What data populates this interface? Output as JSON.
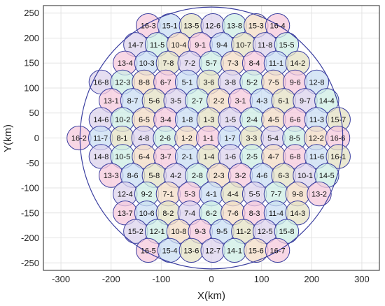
{
  "chart_data": {
    "type": "scatter",
    "xlabel": "X(km)",
    "ylabel": "Y(km)",
    "xlim": [
      -335,
      335
    ],
    "ylim": [
      -265,
      265
    ],
    "xticks": [
      -300,
      -200,
      -100,
      0,
      100,
      200,
      300
    ],
    "yticks": [
      -250,
      -200,
      -150,
      -100,
      -50,
      0,
      50,
      100,
      150,
      200,
      250
    ],
    "grid": true,
    "coverage_radius_km": 262,
    "cell_radius_km": 24,
    "cell_colors": [
      "#f6c9dc",
      "#c9def3",
      "#e4e2c4",
      "#dcd3ec",
      "#cdeee4",
      "#f3dcc5"
    ],
    "outline_color": "#3b3fa0",
    "rows": [
      {
        "y": 225,
        "x_start": -126,
        "labels": [
          "16-3",
          "15-1",
          "13-5",
          "12-6",
          "13-8",
          "15-3",
          "16-4"
        ]
      },
      {
        "y": 187,
        "x_start": -151,
        "labels": [
          "14-7",
          "11-5",
          "10-4",
          "9-1",
          "9-4",
          "10-7",
          "11-8",
          "15-5"
        ]
      },
      {
        "y": 150,
        "x_start": -172,
        "labels": [
          "13-4",
          "10-3",
          "7-8",
          "7-2",
          "5-7",
          "7-3",
          "8-4",
          "11-1",
          "14-2"
        ]
      },
      {
        "y": 112,
        "x_start": -220,
        "labels": [
          "16-8",
          "12-3",
          "8-8",
          "6-7",
          "5-1",
          "3-6",
          "3-8",
          "5-2",
          "7-5",
          "9-6",
          "12-8"
        ]
      },
      {
        "y": 75,
        "x_start": -200,
        "labels": [
          "13-1",
          "8-7",
          "5-6",
          "3-5",
          "2-7",
          "2-2",
          "3-1",
          "4-3",
          "6-1",
          "9-7",
          "14-4"
        ]
      },
      {
        "y": 37,
        "x_start": -220,
        "labels": [
          "14-6",
          "10-2",
          "6-5",
          "3-4",
          "1-8",
          "1-3",
          "1-5",
          "2-4",
          "4-5",
          "6-6",
          "11-3",
          "15-7"
        ]
      },
      {
        "y": 0,
        "x_start": -264,
        "labels": [
          "16-2",
          "11-7",
          "8-1",
          "4-8",
          "2-6",
          "1-2",
          "1-1",
          "1-7",
          "3-3",
          "5-4",
          "8-5",
          "12-2",
          "16-6"
        ]
      },
      {
        "y": -37,
        "x_start": -220,
        "labels": [
          "14-8",
          "10-5",
          "6-4",
          "3-7",
          "2-1",
          "1-4",
          "1-6",
          "2-5",
          "4-7",
          "6-8",
          "11-6",
          "16-1"
        ]
      },
      {
        "y": -75,
        "x_start": -200,
        "labels": [
          "13-3",
          "8-6",
          "5-8",
          "4-2",
          "2-8",
          "2-3",
          "3-2",
          "4-6",
          "6-3",
          "10-1",
          "14-5"
        ]
      },
      {
        "y": -112,
        "x_start": -172,
        "labels": [
          "12-4",
          "9-2",
          "7-1",
          "5-3",
          "4-1",
          "4-4",
          "5-5",
          "7-7",
          "9-8",
          "13-2"
        ]
      },
      {
        "y": -150,
        "x_start": -172,
        "labels": [
          "13-7",
          "10-6",
          "8-2",
          "7-4",
          "6-2",
          "7-6",
          "8-3",
          "11-4",
          "14-3"
        ]
      },
      {
        "y": -187,
        "x_start": -151,
        "labels": [
          "15-2",
          "12-1",
          "10-8",
          "9-3",
          "9-5",
          "11-2",
          "12-5",
          "15-8"
        ]
      },
      {
        "y": -225,
        "x_start": -126,
        "labels": [
          "16-5",
          "15-4",
          "13-6",
          "12-7",
          "14-1",
          "15-6",
          "16-7"
        ]
      }
    ],
    "cell_spacing_km": 43
  }
}
